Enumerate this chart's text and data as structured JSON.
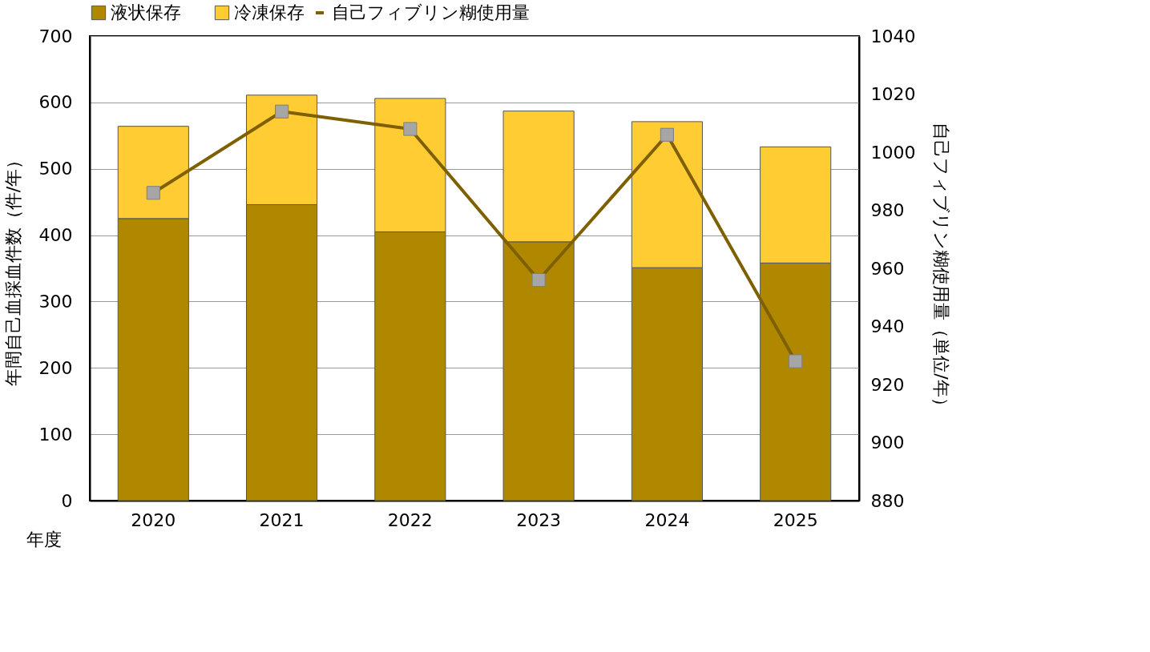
{
  "chart_data": {
    "type": "bar",
    "stacked": true,
    "categories": [
      "2020",
      "2021",
      "2022",
      "2023",
      "2024",
      "2025"
    ],
    "xlabel": "年度",
    "ylabel": "年間自己血採血件数（件/年）",
    "y2label": "自己フィブリン糊使用量（単位/年）",
    "series": [
      {
        "name": "液状保存",
        "color": "#b08800",
        "values": [
          425,
          446,
          405,
          390,
          351,
          358
        ]
      },
      {
        "name": "冷凍保存",
        "color": "#ffcc33",
        "values": [
          139,
          165,
          201,
          197,
          220,
          175
        ]
      },
      {
        "name": "自己フィブリン糊使用量",
        "type": "line",
        "axis": "y2",
        "color": "#7f6000",
        "marker": "square",
        "values": [
          986,
          1014,
          1008,
          956,
          1006,
          928
        ]
      }
    ],
    "ylim": [
      0,
      700
    ],
    "yticks": [
      0,
      100,
      200,
      300,
      400,
      500,
      600,
      700
    ],
    "y2lim": [
      880,
      1040
    ],
    "y2ticks": [
      880,
      900,
      920,
      940,
      960,
      980,
      1000,
      1020,
      1040
    ],
    "grid": "y",
    "legend": "top"
  }
}
